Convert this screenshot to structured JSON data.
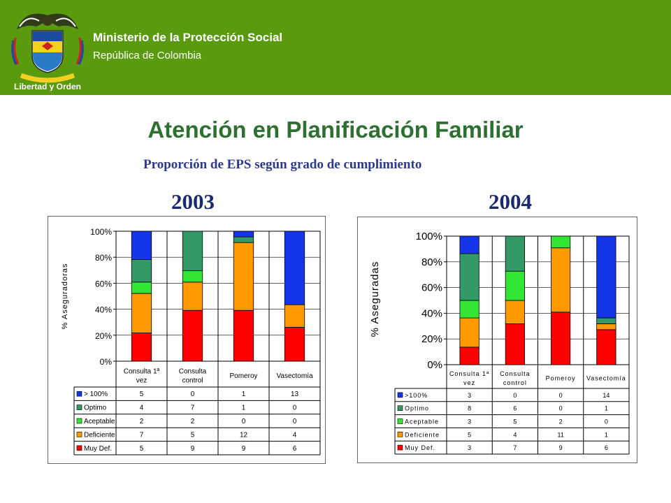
{
  "header": {
    "ministry": "Ministerio de la Protección Social",
    "republic": "República de Colombia",
    "motto": "Libertad y Orden"
  },
  "title": "Atención en Planificación Familiar",
  "subtitle": "Proporción de EPS según grado de cumplimiento",
  "colors": {
    "header_bg": "#5a9a0f",
    "title": "#2e7030",
    "subtitle": "#2b3a8c",
    "s_over100": "#1436e8",
    "s_optimo": "#339966",
    "s_aceptable": "#33e633",
    "s_deficiente": "#ff9900",
    "s_muydef": "#ff0000"
  },
  "chart_data": [
    {
      "type": "bar",
      "stacked": "percent",
      "title": "2003",
      "ylabel": "% Aseguradoras",
      "yticks": [
        "0%",
        "20%",
        "40%",
        "60%",
        "80%",
        "100%"
      ],
      "categories": [
        "Consulta 1ª vez",
        "Consulta control",
        "Pomeroy",
        "Vasectomía"
      ],
      "category_lines": [
        [
          "Consulta 1ª",
          "vez"
        ],
        [
          "Consulta",
          "control"
        ],
        [
          "Pomeroy"
        ],
        [
          "Vasectomía"
        ]
      ],
      "series": [
        {
          "name": "> 100%",
          "values": [
            5,
            0,
            1,
            13
          ]
        },
        {
          "name": "Optimo",
          "values": [
            4,
            7,
            1,
            0
          ]
        },
        {
          "name": "Aceptable",
          "values": [
            2,
            2,
            0,
            0
          ]
        },
        {
          "name": "Deficiente",
          "values": [
            7,
            5,
            12,
            4
          ]
        },
        {
          "name": "Muy Def.",
          "values": [
            5,
            9,
            9,
            6
          ]
        }
      ],
      "data_table": true
    },
    {
      "type": "bar",
      "stacked": "percent",
      "title": "2004",
      "ylabel": "% Aseguradas",
      "yticks": [
        "0%",
        "20%",
        "40%",
        "60%",
        "80%",
        "100%"
      ],
      "categories": [
        "Consulta 1ª vez",
        "Consulta control",
        "Pomeroy",
        "Vasectomía"
      ],
      "category_lines": [
        [
          "Consulta 1ª",
          "vez"
        ],
        [
          "Consulta",
          "control"
        ],
        [
          "Pomeroy"
        ],
        [
          "Vasectomía"
        ]
      ],
      "series": [
        {
          "name": ">100%",
          "values": [
            3,
            0,
            0,
            14
          ]
        },
        {
          "name": "Optimo",
          "values": [
            8,
            6,
            0,
            1
          ]
        },
        {
          "name": "Aceptable",
          "values": [
            3,
            5,
            2,
            0
          ]
        },
        {
          "name": "Deficiente",
          "values": [
            5,
            4,
            11,
            1
          ]
        },
        {
          "name": "Muy Def.",
          "values": [
            3,
            7,
            9,
            6
          ]
        }
      ],
      "data_table": true
    }
  ]
}
